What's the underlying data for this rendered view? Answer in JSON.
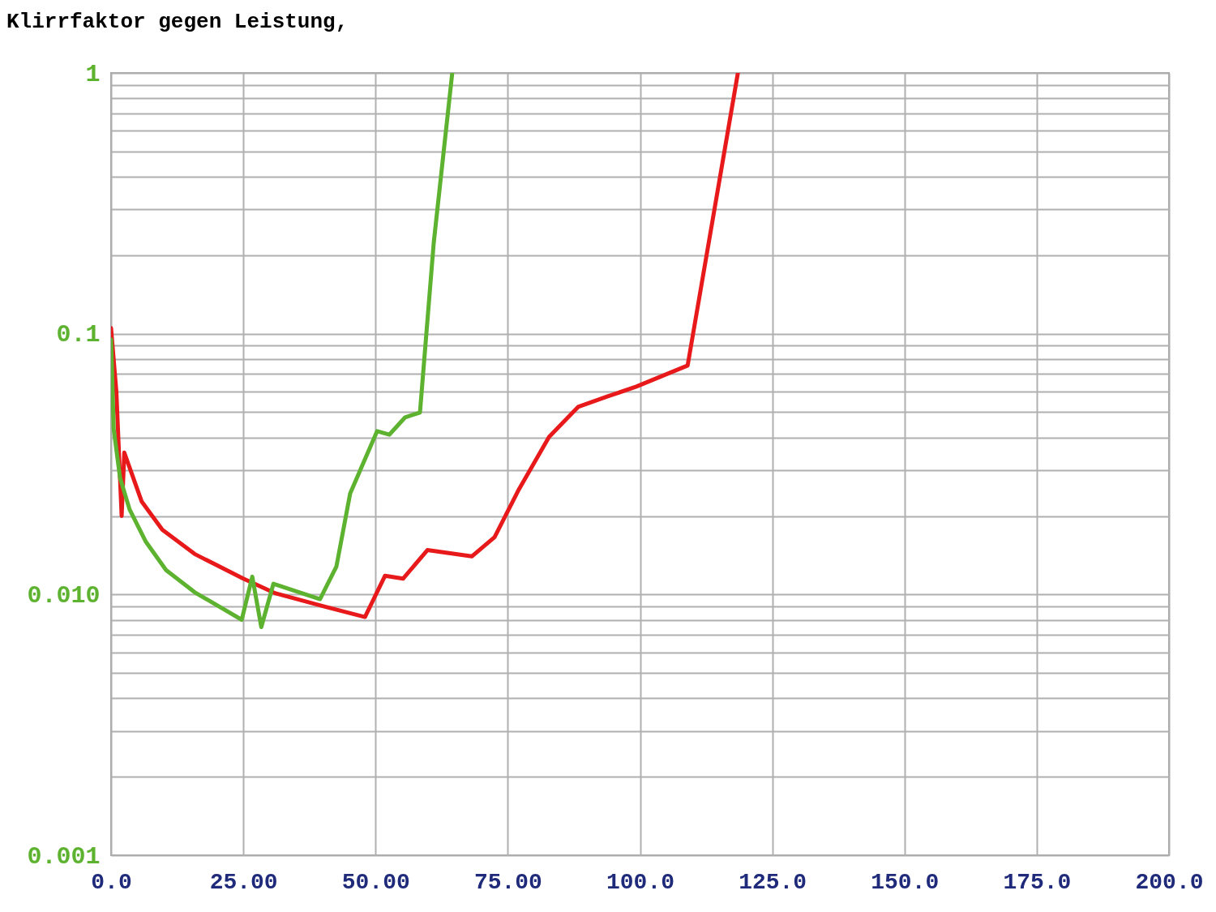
{
  "chart_data": {
    "type": "line",
    "title": "Klirrfaktor gegen Leistung,",
    "log": "y",
    "grid": true,
    "marker": "none",
    "line_style": "solid",
    "xlim": [
      0,
      200
    ],
    "xticks": [
      {
        "value": 0,
        "label": "0.0"
      },
      {
        "value": 25,
        "label": "25.00"
      },
      {
        "value": 50,
        "label": "50.00"
      },
      {
        "value": 75,
        "label": "75.00"
      },
      {
        "value": 100,
        "label": "100.0"
      },
      {
        "value": 125,
        "label": "125.0"
      },
      {
        "value": 150,
        "label": "150.0"
      },
      {
        "value": 175,
        "label": "175.0"
      },
      {
        "value": 200,
        "label": "200.0"
      }
    ],
    "ylim": [
      0.001,
      1
    ],
    "yticks": [
      {
        "value": 0.001,
        "label": "0.001"
      },
      {
        "value": 0.002,
        "label": null
      },
      {
        "value": 0.003,
        "label": null
      },
      {
        "value": 0.004,
        "label": null
      },
      {
        "value": 0.005,
        "label": null
      },
      {
        "value": 0.006,
        "label": null
      },
      {
        "value": 0.007,
        "label": null
      },
      {
        "value": 0.008,
        "label": null
      },
      {
        "value": 0.009,
        "label": null
      },
      {
        "value": 0.01,
        "label": "0.010"
      },
      {
        "value": 0.02,
        "label": null
      },
      {
        "value": 0.03,
        "label": null
      },
      {
        "value": 0.04,
        "label": null
      },
      {
        "value": 0.05,
        "label": null
      },
      {
        "value": 0.06,
        "label": null
      },
      {
        "value": 0.07,
        "label": null
      },
      {
        "value": 0.08,
        "label": null
      },
      {
        "value": 0.09,
        "label": null
      },
      0.1,
      {
        "value": 0.2,
        "label": null
      },
      {
        "value": 0.3,
        "label": null
      },
      {
        "value": 0.4,
        "label": null
      },
      {
        "value": 0.5,
        "label": null
      },
      {
        "value": 0.6,
        "label": null
      },
      {
        "value": 0.7,
        "label": null
      },
      {
        "value": 0.8,
        "label": null
      },
      {
        "value": 0.9,
        "label": null
      },
      1
    ],
    "series": [
      {
        "color": "#e8191a",
        "x": [
          0,
          1,
          2,
          2.5,
          5.8,
          9.7,
          15.8,
          25,
          31.1,
          40.3,
          48,
          51.8,
          55.2,
          59.8,
          68.2,
          72.5,
          77.1,
          82.8,
          88.3,
          93.9,
          99.3,
          109,
          118.5
        ],
        "values": [
          0.105,
          0.06,
          0.02,
          0.035,
          0.0227,
          0.0177,
          0.0143,
          0.0115,
          0.0101,
          0.009,
          0.0082,
          0.0118,
          0.0115,
          0.0148,
          0.014,
          0.0166,
          0.0253,
          0.0402,
          0.0524,
          0.0575,
          0.0627,
          0.0755,
          1
        ]
      },
      {
        "color": "#5db22f",
        "x": [
          0,
          0.5,
          1.7,
          3.5,
          6.6,
          10.4,
          15.8,
          24.7,
          26.7,
          28.4,
          30.7,
          39.5,
          42.6,
          45.2,
          50.3,
          52.6,
          55.6,
          58.4,
          61,
          64.5
        ],
        "values": [
          0.095,
          0.043,
          0.028,
          0.0212,
          0.0159,
          0.0124,
          0.0102,
          0.008,
          0.0117,
          0.0075,
          0.011,
          0.0096,
          0.0128,
          0.0244,
          0.0423,
          0.041,
          0.0478,
          0.0499,
          0.223,
          1
        ]
      }
    ]
  }
}
